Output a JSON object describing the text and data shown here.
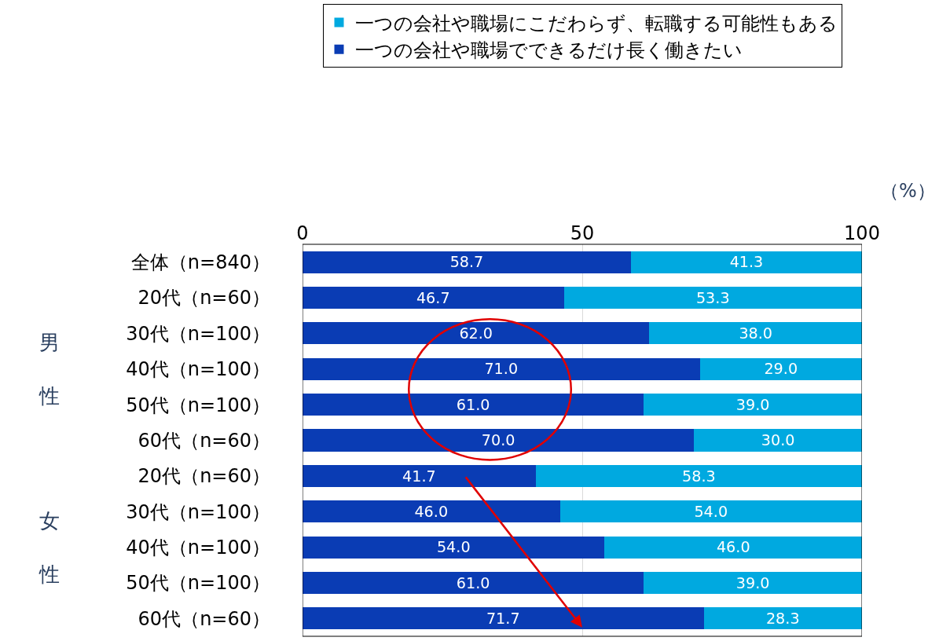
{
  "chart_data": {
    "type": "bar",
    "orientation": "horizontal",
    "stacked": true,
    "categories": [
      "全体（n=840）",
      "20代（n=60）",
      "30代（n=100）",
      "40代（n=100）",
      "50代（n=100）",
      "60代（n=60）",
      "20代（n=60）",
      "30代（n=100）",
      "40代（n=100）",
      "50代（n=100）",
      "60代（n=60）"
    ],
    "series": [
      {
        "name": "一つの会社や職場でできるだけ長く働きたい",
        "color": "#0a3cb4",
        "values": [
          58.7,
          46.7,
          62.0,
          71.0,
          61.0,
          70.0,
          41.7,
          46.0,
          54.0,
          61.0,
          71.7
        ],
        "value_labels": [
          "58.7",
          "46.7",
          "62.0",
          "71.0",
          "61.0",
          "70.0",
          "41.7",
          "46.0",
          "54.0",
          "61.0",
          "71.7"
        ]
      },
      {
        "name": "一つの会社や職場にこだわらず、転職する可能性もある",
        "color": "#00a9e0",
        "values": [
          41.3,
          53.3,
          38.0,
          29.0,
          39.0,
          30.0,
          58.3,
          54.0,
          46.0,
          39.0,
          28.3
        ],
        "value_labels": [
          "41.3",
          "53.3",
          "38.0",
          "29.0",
          "39.0",
          "30.0",
          "58.3",
          "54.0",
          "46.0",
          "39.0",
          "28.3"
        ]
      }
    ],
    "xlim": [
      0,
      100
    ],
    "xticks": [
      0,
      50,
      100
    ],
    "xlabel": "（%）",
    "grid": "x",
    "legend": "top",
    "annotations": [
      "男性",
      "女性"
    ]
  }
}
